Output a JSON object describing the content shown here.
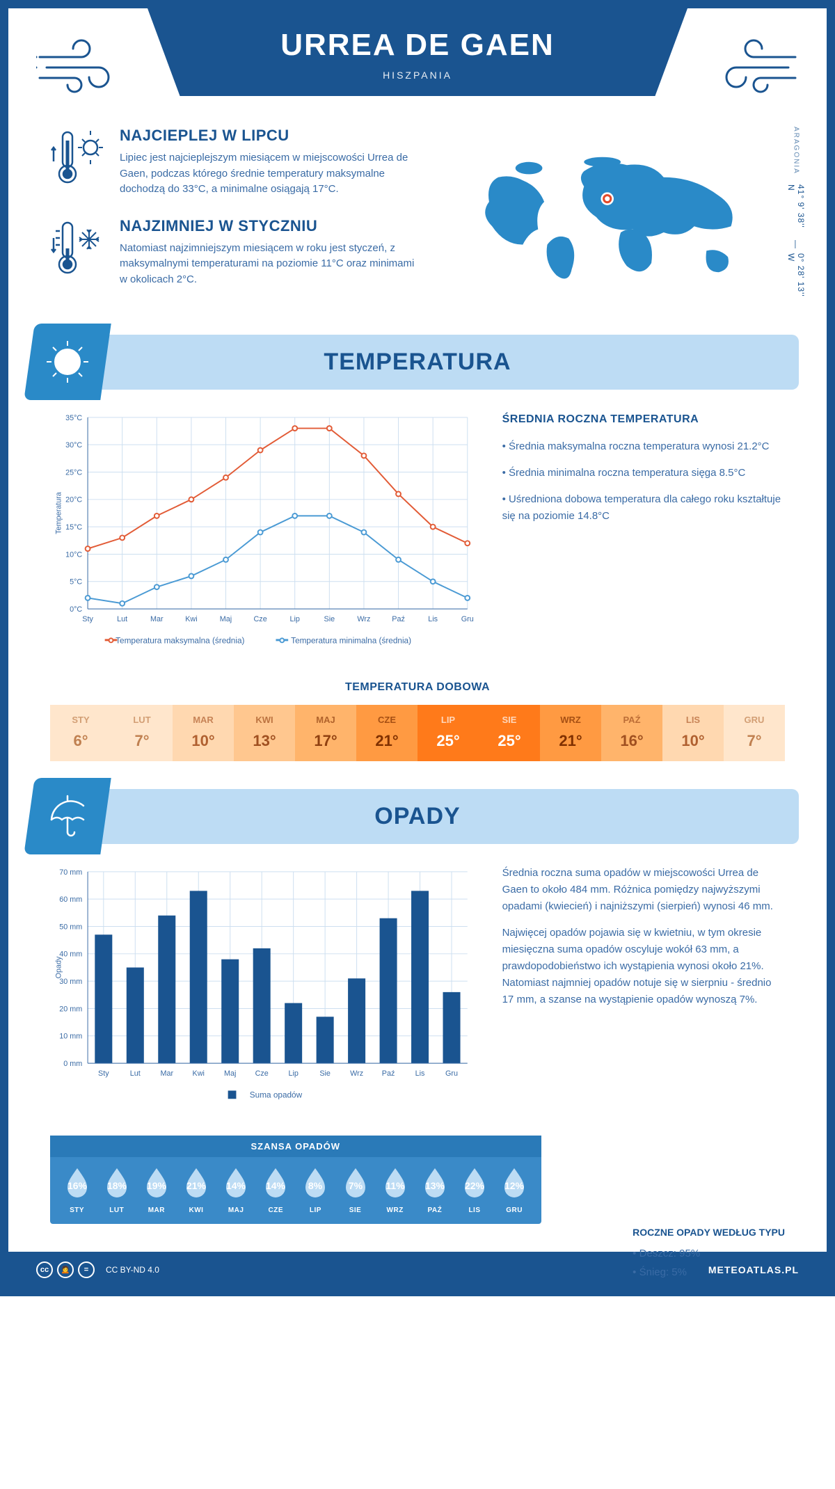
{
  "colors": {
    "primary": "#1a5490",
    "text": "#3a6ba5",
    "panel": "#bddcf4",
    "bar": "#1a5490",
    "line_max": "#e25b36",
    "line_min": "#4a9ad4",
    "grid": "#cddff0",
    "accent_blue": "#3a8ac8",
    "marker": "#e34a2a"
  },
  "header": {
    "title": "URREA DE GAEN",
    "subtitle": "HISZPANIA"
  },
  "coords": {
    "region": "ARAGONIA",
    "lat": "41° 9' 38'' N",
    "lon": "0° 28' 13'' W"
  },
  "intro": {
    "warm": {
      "title": "NAJCIEPLEJ W LIPCU",
      "text": "Lipiec jest najcieplejszym miesiącem w miejscowości Urrea de Gaen, podczas którego średnie temperatury maksymalne dochodzą do 33°C, a minimalne osiągają 17°C."
    },
    "cold": {
      "title": "NAJZIMNIEJ W STYCZNIU",
      "text": "Natomiast najzimniejszym miesiącem w roku jest styczeń, z maksymalnymi temperaturami na poziomie 11°C oraz minimami w okolicach 2°C."
    }
  },
  "temperatura": {
    "heading": "TEMPERATURA",
    "side_title": "ŚREDNIA ROCZNA TEMPERATURA",
    "side": [
      "• Średnia maksymalna roczna temperatura wynosi 21.2°C",
      "• Średnia minimalna roczna temperatura sięga 8.5°C",
      "• Uśredniona dobowa temperatura dla całego roku kształtuje się na poziomie 14.8°C"
    ],
    "chart": {
      "months": [
        "Sty",
        "Lut",
        "Mar",
        "Kwi",
        "Maj",
        "Cze",
        "Lip",
        "Sie",
        "Wrz",
        "Paź",
        "Lis",
        "Gru"
      ],
      "max": [
        11,
        13,
        17,
        20,
        24,
        29,
        33,
        33,
        28,
        21,
        15,
        12
      ],
      "min": [
        2,
        1,
        4,
        6,
        9,
        14,
        17,
        17,
        14,
        9,
        5,
        2
      ],
      "ylim": [
        0,
        35
      ],
      "ystep": 5,
      "yunit": "°C",
      "ylabel": "Temperatura",
      "legend_max": "Temperatura maksymalna (średnia)",
      "legend_min": "Temperatura minimalna (średnia)",
      "line_width": 2,
      "marker_r": 3.5
    },
    "dobowa_title": "TEMPERATURA DOBOWA",
    "dobowa": {
      "months": [
        "STY",
        "LUT",
        "MAR",
        "KWI",
        "MAJ",
        "CZE",
        "LIP",
        "SIE",
        "WRZ",
        "PAŹ",
        "LIS",
        "GRU"
      ],
      "values": [
        "6°",
        "7°",
        "10°",
        "13°",
        "17°",
        "21°",
        "25°",
        "25°",
        "21°",
        "16°",
        "10°",
        "7°"
      ],
      "bg": [
        "#ffe6cc",
        "#ffe6cc",
        "#ffd8b0",
        "#ffc78f",
        "#ffb46b",
        "#ff9a42",
        "#ff7a1a",
        "#ff7a1a",
        "#ff9a42",
        "#ffb46b",
        "#ffd8b0",
        "#ffe6cc"
      ],
      "fg": [
        "#c08050",
        "#c08050",
        "#b06030",
        "#a05020",
        "#904010",
        "#803000",
        "#ffffff",
        "#ffffff",
        "#803000",
        "#a05020",
        "#b06030",
        "#c08050"
      ]
    }
  },
  "opady": {
    "heading": "OPADY",
    "text1": "Średnia roczna suma opadów w miejscowości Urrea de Gaen to około 484 mm. Różnica pomiędzy najwyższymi opadami (kwiecień) i najniższymi (sierpień) wynosi 46 mm.",
    "text2": "Najwięcej opadów pojawia się w kwietniu, w tym okresie miesięczna suma opadów oscyluje wokół 63 mm, a prawdopodobieństwo ich wystąpienia wynosi około 21%. Natomiast najmniej opadów notuje się w sierpniu - średnio 17 mm, a szanse na wystąpienie opadów wynoszą 7%.",
    "chart": {
      "months": [
        "Sty",
        "Lut",
        "Mar",
        "Kwi",
        "Maj",
        "Cze",
        "Lip",
        "Sie",
        "Wrz",
        "Paź",
        "Lis",
        "Gru"
      ],
      "values": [
        47,
        35,
        54,
        63,
        38,
        42,
        22,
        17,
        31,
        53,
        63,
        26
      ],
      "ylim": [
        0,
        70
      ],
      "ystep": 10,
      "yunit": " mm",
      "ylabel": "Opady",
      "legend": "Suma opadów",
      "bar_width": 0.55
    },
    "szansa_title": "SZANSA OPADÓW",
    "szansa": {
      "months": [
        "STY",
        "LUT",
        "MAR",
        "KWI",
        "MAJ",
        "CZE",
        "LIP",
        "SIE",
        "WRZ",
        "PAŹ",
        "LIS",
        "GRU"
      ],
      "pct": [
        "16%",
        "18%",
        "19%",
        "21%",
        "14%",
        "14%",
        "8%",
        "7%",
        "11%",
        "13%",
        "22%",
        "12%"
      ]
    },
    "typ_title": "ROCZNE OPADY WEDŁUG TYPU",
    "typ": [
      "• Deszcz: 95%",
      "• Śnieg: 5%"
    ]
  },
  "footer": {
    "license": "CC BY-ND 4.0",
    "site": "METEOATLAS.PL"
  }
}
